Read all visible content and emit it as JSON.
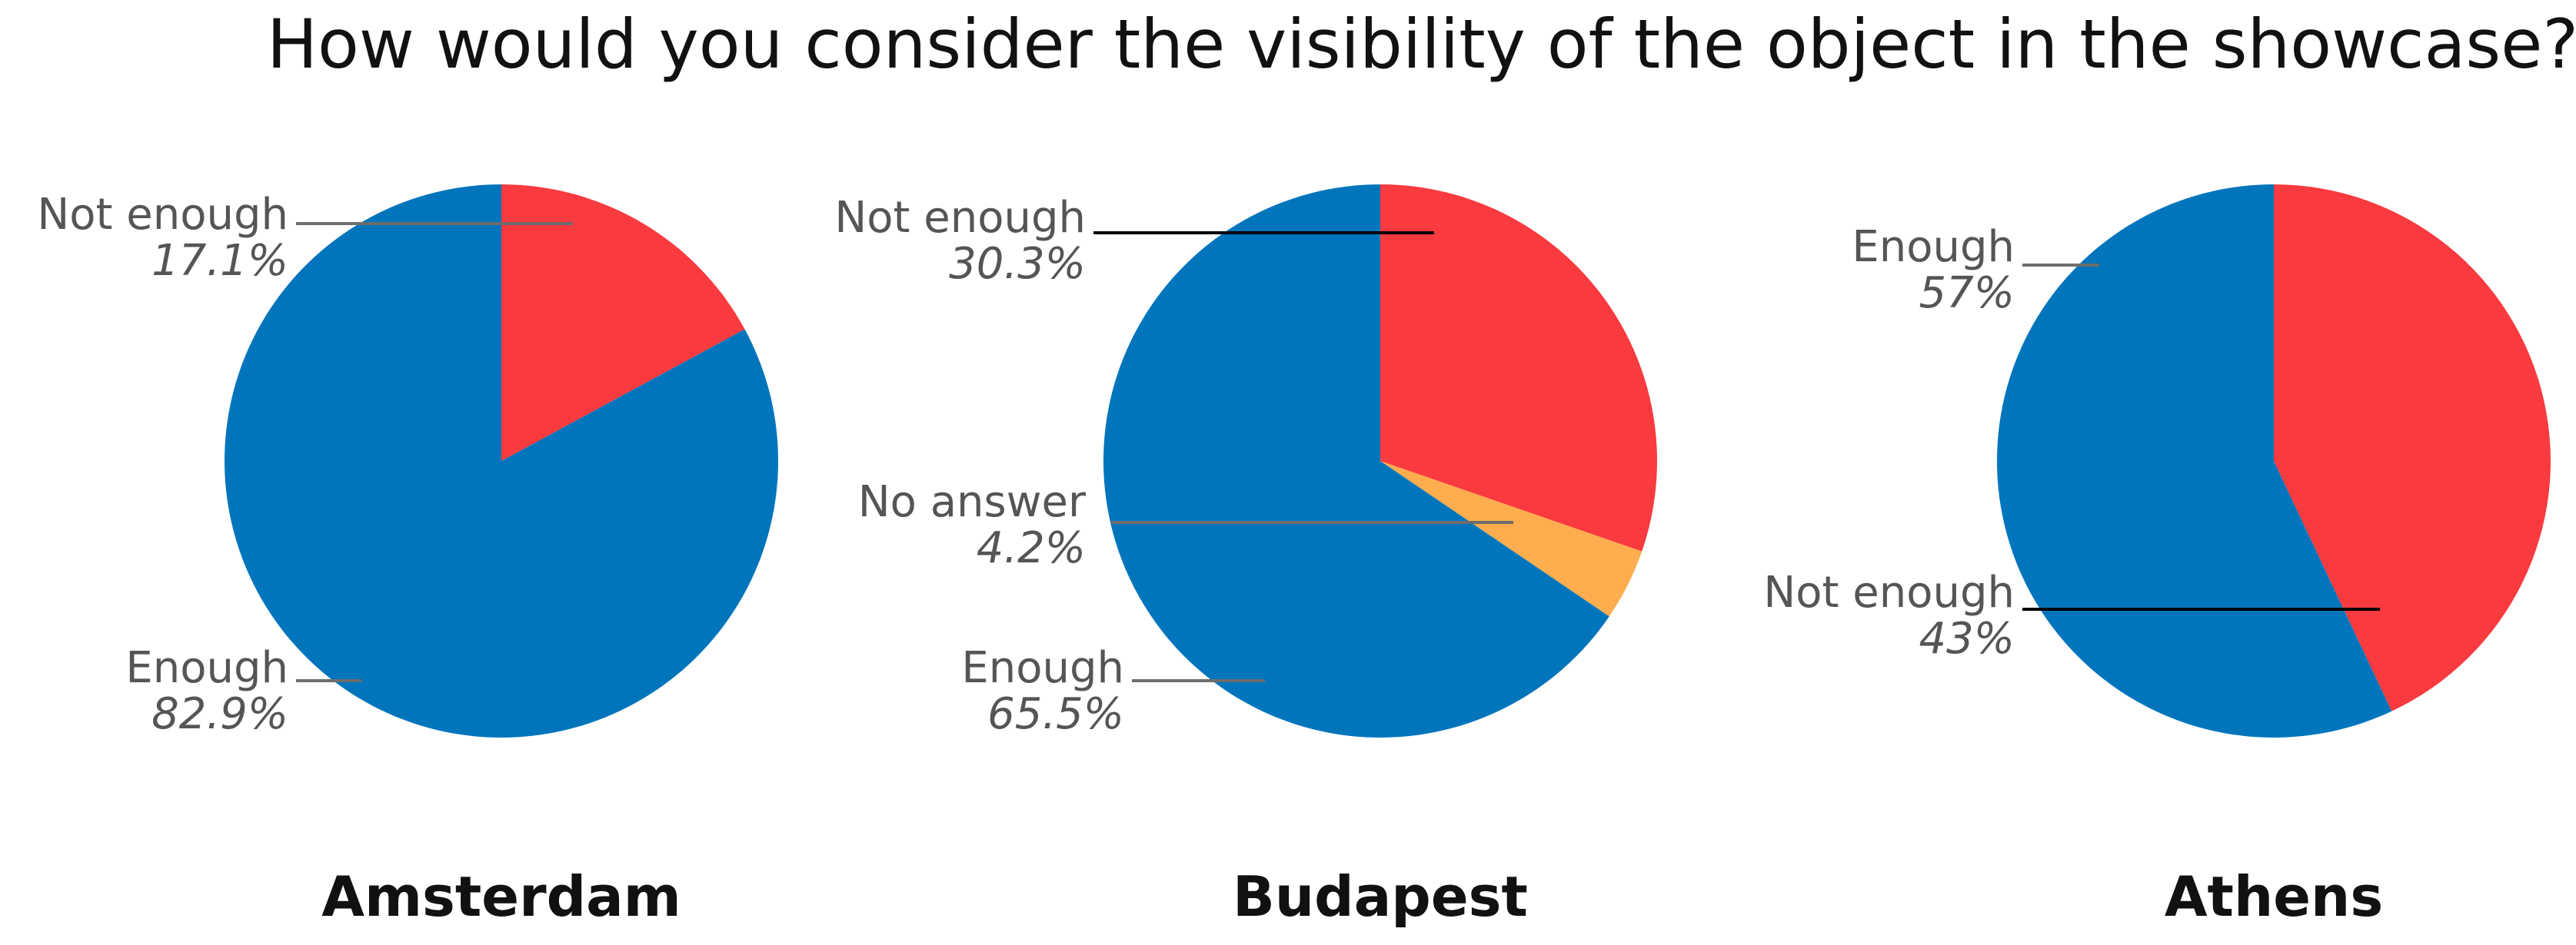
{
  "title": "How would you consider the visibility of the object in the showcase?",
  "chart_data": [
    {
      "type": "pie",
      "title": "Amsterdam",
      "slices": [
        {
          "label": "Not enough",
          "value": 17.1,
          "value_label": "17.1%",
          "color": "#f93a3f"
        },
        {
          "label": "Enough",
          "value": 82.9,
          "value_label": "82.9%",
          "color": "#0075bc"
        }
      ]
    },
    {
      "type": "pie",
      "title": "Budapest",
      "slices": [
        {
          "label": "Not enough",
          "value": 30.3,
          "value_label": "30.3%",
          "color": "#f93a3f"
        },
        {
          "label": "No answer",
          "value": 4.2,
          "value_label": "4.2%",
          "color": "#ffad4e"
        },
        {
          "label": "Enough",
          "value": 65.5,
          "value_label": "65.5%",
          "color": "#0075bc"
        }
      ]
    },
    {
      "type": "pie",
      "title": "Athens",
      "slices": [
        {
          "label": "Not enough",
          "value": 43,
          "value_label": "43%",
          "color": "#f93a3f"
        },
        {
          "label": "Enough",
          "value": 57,
          "value_label": "57%",
          "color": "#0075bc"
        }
      ]
    }
  ]
}
